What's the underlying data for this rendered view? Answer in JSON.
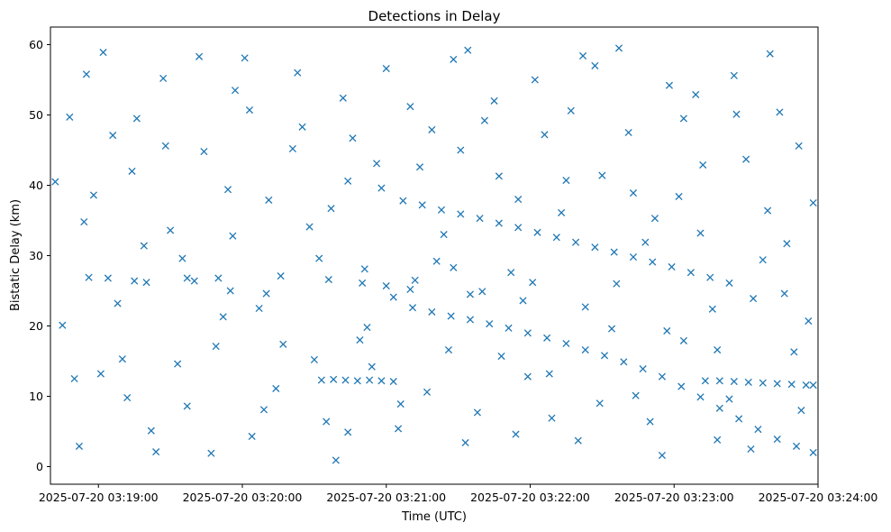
{
  "chart_data": {
    "type": "scatter",
    "title": "Detections in Delay",
    "xlabel": "Time (UTC)",
    "ylabel": "Bistatic Delay (km)",
    "marker": "x",
    "color": "#1f77b4",
    "grid": false,
    "x_axis_type": "datetime",
    "xlim": [
      "2025-07-20 03:18:40",
      "2025-07-20 03:24:00"
    ],
    "ylim": [
      -2.5,
      62.5
    ],
    "x_ticks": [
      "2025-07-20 03:19:00",
      "2025-07-20 03:20:00",
      "2025-07-20 03:21:00",
      "2025-07-20 03:22:00",
      "2025-07-20 03:23:00",
      "2025-07-20 03:24:00"
    ],
    "y_ticks": [
      0,
      10,
      20,
      30,
      40,
      50,
      60
    ],
    "series": [
      {
        "points": [
          [
            "2025-07-20 03:21:07",
            37.8
          ],
          [
            "2025-07-20 03:21:15",
            37.2
          ],
          [
            "2025-07-20 03:21:23",
            36.5
          ],
          [
            "2025-07-20 03:21:31",
            35.9
          ],
          [
            "2025-07-20 03:21:39",
            35.3
          ],
          [
            "2025-07-20 03:21:47",
            34.6
          ],
          [
            "2025-07-20 03:21:55",
            34.0
          ],
          [
            "2025-07-20 03:22:03",
            33.3
          ],
          [
            "2025-07-20 03:22:11",
            32.6
          ],
          [
            "2025-07-20 03:22:19",
            31.9
          ],
          [
            "2025-07-20 03:22:27",
            31.2
          ],
          [
            "2025-07-20 03:22:35",
            30.5
          ],
          [
            "2025-07-20 03:22:43",
            29.8
          ],
          [
            "2025-07-20 03:22:51",
            29.1
          ],
          [
            "2025-07-20 03:22:59",
            28.4
          ],
          [
            "2025-07-20 03:23:07",
            27.6
          ],
          [
            "2025-07-20 03:23:15",
            26.9
          ],
          [
            "2025-07-20 03:23:23",
            26.1
          ],
          [
            "2025-07-20 03:21:11",
            22.6
          ],
          [
            "2025-07-20 03:21:19",
            22.0
          ],
          [
            "2025-07-20 03:21:27",
            21.4
          ],
          [
            "2025-07-20 03:21:35",
            20.9
          ],
          [
            "2025-07-20 03:21:43",
            20.3
          ],
          [
            "2025-07-20 03:21:51",
            19.7
          ],
          [
            "2025-07-20 03:21:59",
            19.0
          ],
          [
            "2025-07-20 03:22:07",
            18.3
          ],
          [
            "2025-07-20 03:22:15",
            17.5
          ],
          [
            "2025-07-20 03:22:23",
            16.6
          ],
          [
            "2025-07-20 03:22:31",
            15.8
          ],
          [
            "2025-07-20 03:22:39",
            14.9
          ],
          [
            "2025-07-20 03:22:47",
            13.9
          ],
          [
            "2025-07-20 03:22:55",
            12.8
          ],
          [
            "2025-07-20 03:23:03",
            11.4
          ],
          [
            "2025-07-20 03:23:11",
            9.9
          ],
          [
            "2025-07-20 03:23:19",
            8.3
          ],
          [
            "2025-07-20 03:23:27",
            6.8
          ],
          [
            "2025-07-20 03:23:35",
            5.3
          ],
          [
            "2025-07-20 03:23:43",
            3.9
          ],
          [
            "2025-07-20 03:23:51",
            2.9
          ],
          [
            "2025-07-20 03:23:58",
            2.0
          ],
          [
            "2025-07-20 03:20:33",
            12.3
          ],
          [
            "2025-07-20 03:20:38",
            12.4
          ],
          [
            "2025-07-20 03:20:43",
            12.3
          ],
          [
            "2025-07-20 03:20:48",
            12.2
          ],
          [
            "2025-07-20 03:20:53",
            12.3
          ],
          [
            "2025-07-20 03:20:58",
            12.2
          ],
          [
            "2025-07-20 03:21:03",
            12.1
          ],
          [
            "2025-07-20 03:23:13",
            12.2
          ],
          [
            "2025-07-20 03:23:19",
            12.2
          ],
          [
            "2025-07-20 03:23:25",
            12.1
          ],
          [
            "2025-07-20 03:23:31",
            12.0
          ],
          [
            "2025-07-20 03:23:37",
            11.9
          ],
          [
            "2025-07-20 03:23:43",
            11.8
          ],
          [
            "2025-07-20 03:23:49",
            11.7
          ],
          [
            "2025-07-20 03:23:55",
            11.6
          ],
          [
            "2025-07-20 03:23:58",
            11.6
          ],
          [
            "2025-07-20 03:18:56",
            26.9
          ],
          [
            "2025-07-20 03:19:04",
            26.8
          ],
          [
            "2025-07-20 03:19:15",
            26.4
          ],
          [
            "2025-07-20 03:19:20",
            26.2
          ],
          [
            "2025-07-20 03:19:37",
            26.8
          ],
          [
            "2025-07-20 03:19:50",
            26.8
          ],
          [
            "2025-07-20 03:19:55",
            25.0
          ],
          [
            "2025-07-20 03:20:10",
            24.6
          ],
          [
            "2025-07-20 03:20:36",
            26.6
          ],
          [
            "2025-07-20 03:20:50",
            26.1
          ],
          [
            "2025-07-20 03:21:00",
            25.7
          ],
          [
            "2025-07-20 03:21:10",
            25.2
          ],
          [
            "2025-07-20 03:21:35",
            24.5
          ],
          [
            "2025-07-20 03:21:57",
            23.6
          ],
          [
            "2025-07-20 03:20:44",
            40.6
          ],
          [
            "2025-07-20 03:21:28",
            28.3
          ],
          [
            "2025-07-20 03:20:54",
            14.2
          ],
          [
            "2025-07-20 03:18:42",
            40.5
          ],
          [
            "2025-07-20 03:18:50",
            12.5
          ],
          [
            "2025-07-20 03:18:55",
            55.8
          ],
          [
            "2025-07-20 03:19:02",
            58.9
          ],
          [
            "2025-07-20 03:19:10",
            15.3
          ],
          [
            "2025-07-20 03:19:16",
            49.5
          ],
          [
            "2025-07-20 03:19:24",
            2.1
          ],
          [
            "2025-07-20 03:19:30",
            33.6
          ],
          [
            "2025-07-20 03:19:37",
            8.6
          ],
          [
            "2025-07-20 03:19:44",
            44.8
          ],
          [
            "2025-07-20 03:19:52",
            21.3
          ],
          [
            "2025-07-20 03:19:57",
            53.5
          ],
          [
            "2025-07-20 03:20:04",
            4.3
          ],
          [
            "2025-07-20 03:20:11",
            37.9
          ],
          [
            "2025-07-20 03:20:17",
            17.4
          ],
          [
            "2025-07-20 03:20:25",
            48.3
          ],
          [
            "2025-07-20 03:20:32",
            29.6
          ],
          [
            "2025-07-20 03:20:39",
            0.9
          ],
          [
            "2025-07-20 03:20:46",
            46.7
          ],
          [
            "2025-07-20 03:20:52",
            19.8
          ],
          [
            "2025-07-20 03:21:00",
            56.6
          ],
          [
            "2025-07-20 03:21:06",
            8.9
          ],
          [
            "2025-07-20 03:21:14",
            42.6
          ],
          [
            "2025-07-20 03:21:21",
            29.2
          ],
          [
            "2025-07-20 03:21:28",
            57.9
          ],
          [
            "2025-07-20 03:21:33",
            3.4
          ],
          [
            "2025-07-20 03:21:41",
            49.2
          ],
          [
            "2025-07-20 03:21:48",
            15.7
          ],
          [
            "2025-07-20 03:21:55",
            38.0
          ],
          [
            "2025-07-20 03:22:02",
            55.0
          ],
          [
            "2025-07-20 03:22:09",
            6.9
          ],
          [
            "2025-07-20 03:22:17",
            50.6
          ],
          [
            "2025-07-20 03:22:23",
            22.7
          ],
          [
            "2025-07-20 03:22:30",
            41.4
          ],
          [
            "2025-07-20 03:22:37",
            59.5
          ],
          [
            "2025-07-20 03:22:44",
            10.1
          ],
          [
            "2025-07-20 03:22:52",
            35.3
          ],
          [
            "2025-07-20 03:22:58",
            54.2
          ],
          [
            "2025-07-20 03:23:04",
            17.9
          ],
          [
            "2025-07-20 03:23:12",
            42.9
          ],
          [
            "2025-07-20 03:23:18",
            3.8
          ],
          [
            "2025-07-20 03:23:26",
            50.1
          ],
          [
            "2025-07-20 03:23:33",
            23.9
          ],
          [
            "2025-07-20 03:23:40",
            58.7
          ],
          [
            "2025-07-20 03:23:47",
            31.7
          ],
          [
            "2025-07-20 03:23:52",
            45.6
          ],
          [
            "2025-07-20 03:23:58",
            37.5
          ],
          [
            "2025-07-20 03:18:45",
            20.1
          ],
          [
            "2025-07-20 03:18:52",
            2.9
          ],
          [
            "2025-07-20 03:18:58",
            38.6
          ],
          [
            "2025-07-20 03:19:06",
            47.1
          ],
          [
            "2025-07-20 03:19:12",
            9.8
          ],
          [
            "2025-07-20 03:19:19",
            31.4
          ],
          [
            "2025-07-20 03:19:27",
            55.2
          ],
          [
            "2025-07-20 03:19:33",
            14.6
          ],
          [
            "2025-07-20 03:19:40",
            26.4
          ],
          [
            "2025-07-20 03:19:47",
            1.9
          ],
          [
            "2025-07-20 03:19:54",
            39.4
          ],
          [
            "2025-07-20 03:20:01",
            58.1
          ],
          [
            "2025-07-20 03:20:07",
            22.5
          ],
          [
            "2025-07-20 03:20:14",
            11.1
          ],
          [
            "2025-07-20 03:20:21",
            45.2
          ],
          [
            "2025-07-20 03:20:28",
            34.1
          ],
          [
            "2025-07-20 03:20:35",
            6.4
          ],
          [
            "2025-07-20 03:20:42",
            52.4
          ],
          [
            "2025-07-20 03:20:49",
            18.0
          ],
          [
            "2025-07-20 03:20:56",
            43.1
          ],
          [
            "2025-07-20 03:21:03",
            24.1
          ],
          [
            "2025-07-20 03:21:10",
            51.2
          ],
          [
            "2025-07-20 03:21:17",
            10.6
          ],
          [
            "2025-07-20 03:21:24",
            33.0
          ],
          [
            "2025-07-20 03:21:31",
            45.0
          ],
          [
            "2025-07-20 03:21:38",
            7.7
          ],
          [
            "2025-07-20 03:21:45",
            52.0
          ],
          [
            "2025-07-20 03:21:52",
            27.6
          ],
          [
            "2025-07-20 03:21:59",
            12.8
          ],
          [
            "2025-07-20 03:22:06",
            47.2
          ],
          [
            "2025-07-20 03:22:13",
            36.1
          ],
          [
            "2025-07-20 03:22:20",
            3.7
          ],
          [
            "2025-07-20 03:22:27",
            57.0
          ],
          [
            "2025-07-20 03:22:34",
            19.6
          ],
          [
            "2025-07-20 03:22:41",
            47.5
          ],
          [
            "2025-07-20 03:22:48",
            31.9
          ],
          [
            "2025-07-20 03:22:55",
            1.6
          ],
          [
            "2025-07-20 03:23:02",
            38.4
          ],
          [
            "2025-07-20 03:23:09",
            52.9
          ],
          [
            "2025-07-20 03:23:16",
            22.4
          ],
          [
            "2025-07-20 03:23:23",
            9.6
          ],
          [
            "2025-07-20 03:23:30",
            43.7
          ],
          [
            "2025-07-20 03:23:37",
            29.4
          ],
          [
            "2025-07-20 03:23:44",
            50.4
          ],
          [
            "2025-07-20 03:23:50",
            16.3
          ],
          [
            "2025-07-20 03:23:56",
            20.7
          ],
          [
            "2025-07-20 03:18:48",
            49.7
          ],
          [
            "2025-07-20 03:18:54",
            34.8
          ],
          [
            "2025-07-20 03:19:01",
            13.2
          ],
          [
            "2025-07-20 03:19:08",
            23.2
          ],
          [
            "2025-07-20 03:19:14",
            42.0
          ],
          [
            "2025-07-20 03:19:22",
            5.1
          ],
          [
            "2025-07-20 03:19:28",
            45.6
          ],
          [
            "2025-07-20 03:19:35",
            29.6
          ],
          [
            "2025-07-20 03:19:42",
            58.3
          ],
          [
            "2025-07-20 03:19:49",
            17.1
          ],
          [
            "2025-07-20 03:19:56",
            32.8
          ],
          [
            "2025-07-20 03:20:03",
            50.7
          ],
          [
            "2025-07-20 03:20:09",
            8.1
          ],
          [
            "2025-07-20 03:20:16",
            27.1
          ],
          [
            "2025-07-20 03:20:23",
            56.0
          ],
          [
            "2025-07-20 03:20:30",
            15.2
          ],
          [
            "2025-07-20 03:20:37",
            36.7
          ],
          [
            "2025-07-20 03:20:44",
            4.9
          ],
          [
            "2025-07-20 03:20:51",
            28.1
          ],
          [
            "2025-07-20 03:20:58",
            39.6
          ],
          [
            "2025-07-20 03:21:05",
            5.4
          ],
          [
            "2025-07-20 03:21:12",
            26.5
          ],
          [
            "2025-07-20 03:21:19",
            47.9
          ],
          [
            "2025-07-20 03:21:26",
            16.6
          ],
          [
            "2025-07-20 03:21:34",
            59.2
          ],
          [
            "2025-07-20 03:21:40",
            24.9
          ],
          [
            "2025-07-20 03:21:47",
            41.3
          ],
          [
            "2025-07-20 03:21:54",
            4.6
          ],
          [
            "2025-07-20 03:22:01",
            26.2
          ],
          [
            "2025-07-20 03:22:08",
            13.2
          ],
          [
            "2025-07-20 03:22:15",
            40.7
          ],
          [
            "2025-07-20 03:22:22",
            58.4
          ],
          [
            "2025-07-20 03:22:29",
            9.0
          ],
          [
            "2025-07-20 03:22:36",
            26.0
          ],
          [
            "2025-07-20 03:22:43",
            38.9
          ],
          [
            "2025-07-20 03:22:50",
            6.4
          ],
          [
            "2025-07-20 03:22:57",
            19.3
          ],
          [
            "2025-07-20 03:23:04",
            49.5
          ],
          [
            "2025-07-20 03:23:11",
            33.2
          ],
          [
            "2025-07-20 03:23:18",
            16.6
          ],
          [
            "2025-07-20 03:23:25",
            55.6
          ],
          [
            "2025-07-20 03:23:32",
            2.5
          ],
          [
            "2025-07-20 03:23:39",
            36.4
          ],
          [
            "2025-07-20 03:23:46",
            24.6
          ],
          [
            "2025-07-20 03:23:53",
            8.0
          ]
        ]
      }
    ]
  }
}
